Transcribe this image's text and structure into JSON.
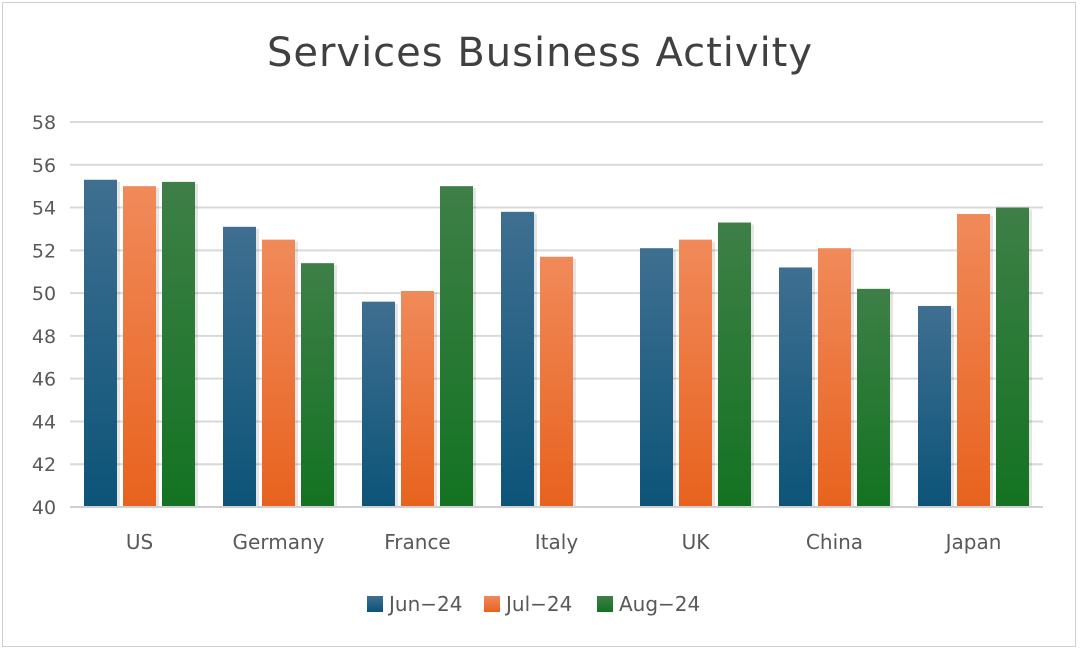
{
  "chart_data": {
    "type": "bar",
    "title": "Services Business Activity",
    "xlabel": "",
    "ylabel": "",
    "ylim": [
      40,
      58
    ],
    "yticks": [
      40,
      42,
      44,
      46,
      48,
      50,
      52,
      54,
      56,
      58
    ],
    "grid": true,
    "legend_position": "bottom",
    "categories": [
      "US",
      "Germany",
      "France",
      "Italy",
      "UK",
      "China",
      "Japan"
    ],
    "series": [
      {
        "name": "Jun−24",
        "color_top": "#3f6f91",
        "color_bottom": "#0c5478",
        "values": [
          55.3,
          53.1,
          49.6,
          53.8,
          52.1,
          51.2,
          49.4
        ]
      },
      {
        "name": "Jul−24",
        "color_top": "#f08a5a",
        "color_bottom": "#e8621e",
        "values": [
          55.0,
          52.5,
          50.1,
          51.7,
          52.5,
          52.1,
          53.7
        ]
      },
      {
        "name": "Aug−24",
        "color_top": "#3e7f47",
        "color_bottom": "#137322",
        "values": [
          55.2,
          51.4,
          55.0,
          null,
          53.3,
          50.2,
          54.0
        ]
      }
    ]
  }
}
